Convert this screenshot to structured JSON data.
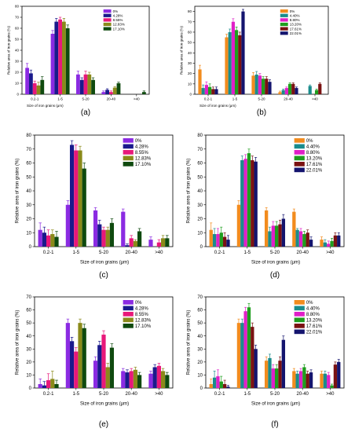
{
  "colors": {
    "set_a": [
      "#8B2BE2",
      "#1A1A8C",
      "#E8187A",
      "#8A8A1A",
      "#0F4A0F"
    ],
    "set_b": [
      "#F28C1E",
      "#1A8C8C",
      "#E020C8",
      "#1E9E1E",
      "#7A1212",
      "#14146E"
    ]
  },
  "chart_data": [
    {
      "id": "a",
      "type": "bar",
      "panel_label": "(a)",
      "xlabel": "Size of iron grains (μm)",
      "ylabel": "Relative area of iron grains (%)",
      "ylim": [
        0,
        80
      ],
      "yticks": [
        0,
        10,
        20,
        30,
        40,
        50,
        60,
        70,
        80
      ],
      "categories": [
        "0.2-1",
        "1-5",
        "5-20",
        "20-40",
        ">40"
      ],
      "legend_position": "top-right",
      "palette": "set_a",
      "series": [
        {
          "name": "0%",
          "values": [
            24,
            55,
            18,
            2,
            0
          ],
          "errors": [
            4,
            3,
            3,
            1,
            0
          ]
        },
        {
          "name": "4.28%",
          "values": [
            19,
            66,
            13,
            4,
            0
          ],
          "errors": [
            3,
            3,
            2,
            1,
            0
          ]
        },
        {
          "name": "8.55%",
          "values": [
            10,
            68,
            18,
            2,
            0
          ],
          "errors": [
            2,
            2,
            3,
            1,
            0
          ]
        },
        {
          "name": "12.83%",
          "values": [
            8,
            66,
            18,
            6,
            0
          ],
          "errors": [
            3,
            3,
            2,
            1,
            0
          ]
        },
        {
          "name": "17.10%",
          "values": [
            13,
            60,
            13,
            10,
            2
          ],
          "errors": [
            3,
            3,
            2,
            1,
            1
          ]
        }
      ]
    },
    {
      "id": "b",
      "type": "bar",
      "panel_label": "(b)",
      "xlabel": "Size of iron grains (μm)",
      "ylabel": "Relative area of iron grains (%)",
      "ylim": [
        0,
        85
      ],
      "yticks": [
        0,
        10,
        20,
        30,
        40,
        50,
        60,
        70,
        80
      ],
      "categories": [
        "0.2-1",
        "1-5",
        "5-20",
        "20-40",
        ">40"
      ],
      "legend_position": "top-right",
      "palette": "set_b",
      "series": [
        {
          "name": "0%",
          "values": [
            24,
            55,
            18,
            2,
            0
          ],
          "errors": [
            4,
            3,
            3,
            1,
            0
          ]
        },
        {
          "name": "4.40%",
          "values": [
            6,
            60,
            19,
            4,
            8
          ],
          "errors": [
            3,
            3,
            3,
            1,
            1
          ]
        },
        {
          "name": "8.80%",
          "values": [
            9,
            70,
            18,
            6,
            0
          ],
          "errors": [
            3,
            3,
            2,
            1,
            0
          ]
        },
        {
          "name": "13.20%",
          "values": [
            7,
            62,
            15,
            10,
            4
          ],
          "errors": [
            3,
            3,
            2,
            1,
            1
          ]
        },
        {
          "name": "17.61%",
          "values": [
            5,
            57,
            15,
            10,
            10
          ],
          "errors": [
            2,
            3,
            2,
            1,
            1
          ]
        },
        {
          "name": "22.01%",
          "values": [
            5,
            80,
            12,
            6,
            0
          ],
          "errors": [
            2,
            2,
            2,
            1,
            0
          ]
        }
      ]
    },
    {
      "id": "c",
      "type": "bar",
      "panel_label": "(c)",
      "xlabel": "Size of iron grains (μm)",
      "ylabel": "Relative area of iron grains (%)",
      "ylim": [
        0,
        80
      ],
      "yticks": [
        0,
        10,
        20,
        30,
        40,
        50,
        60,
        70,
        80
      ],
      "categories": [
        "0.2-1",
        "1-5",
        "5-20",
        "20-40",
        ">40"
      ],
      "legend_position": "top-right",
      "palette": "set_a",
      "series": [
        {
          "name": "0%",
          "values": [
            12,
            30,
            26,
            25,
            5
          ],
          "errors": [
            5,
            3,
            2,
            2,
            2
          ]
        },
        {
          "name": "4.28%",
          "values": [
            10,
            73,
            16,
            1,
            0
          ],
          "errors": [
            4,
            3,
            3,
            1,
            0
          ]
        },
        {
          "name": "8.55%",
          "values": [
            8,
            69,
            12,
            6,
            3
          ],
          "errors": [
            4,
            4,
            2,
            2,
            2
          ]
        },
        {
          "name": "12.83%",
          "values": [
            9,
            69,
            12,
            4,
            6
          ],
          "errors": [
            3,
            3,
            2,
            1,
            2
          ]
        },
        {
          "name": "17.10%",
          "values": [
            7,
            56,
            17,
            11,
            6
          ],
          "errors": [
            4,
            4,
            3,
            2,
            2
          ]
        }
      ]
    },
    {
      "id": "d",
      "type": "bar",
      "panel_label": "(d)",
      "xlabel": "Size of iron grains (μm)",
      "ylabel": "Relative area of iron grains (%)",
      "ylim": [
        0,
        80
      ],
      "yticks": [
        0,
        10,
        20,
        30,
        40,
        50,
        60,
        70,
        80
      ],
      "categories": [
        "0.2-1",
        "1-5",
        "5-20",
        "20-40",
        ">40"
      ],
      "legend_position": "top-right",
      "palette": "set_b",
      "series": [
        {
          "name": "0%",
          "values": [
            12,
            30,
            26,
            25,
            5
          ],
          "errors": [
            5,
            3,
            2,
            2,
            2
          ]
        },
        {
          "name": "4.40%",
          "values": [
            9,
            62,
            11,
            12,
            3
          ],
          "errors": [
            4,
            3,
            3,
            1,
            2
          ]
        },
        {
          "name": "8.80%",
          "values": [
            9,
            63,
            15,
            11,
            2
          ],
          "errors": [
            4,
            3,
            3,
            2,
            2
          ]
        },
        {
          "name": "13.20%",
          "values": [
            10,
            67,
            15,
            9,
            4
          ],
          "errors": [
            4,
            3,
            3,
            2,
            2
          ]
        },
        {
          "name": "17.61%",
          "values": [
            7,
            62,
            16,
            10,
            8
          ],
          "errors": [
            3,
            3,
            3,
            2,
            2
          ]
        },
        {
          "name": "22.01%",
          "values": [
            5,
            61,
            20,
            5,
            8
          ],
          "errors": [
            3,
            3,
            3,
            2,
            2
          ]
        }
      ]
    },
    {
      "id": "e",
      "type": "bar",
      "panel_label": "(e)",
      "xlabel": "Size of iron grains (μm)",
      "ylabel": "Relative area of iron grains (%)",
      "ylim": [
        0,
        70
      ],
      "yticks": [
        0,
        10,
        20,
        30,
        40,
        50,
        60,
        70
      ],
      "categories": [
        "0.2-1",
        "1-5",
        "5-20",
        "20-40",
        ">40"
      ],
      "legend_position": "top-right",
      "palette": "set_a",
      "series": [
        {
          "name": "0%",
          "values": [
            3,
            50,
            21,
            13,
            11
          ],
          "errors": [
            4,
            3,
            3,
            2,
            2
          ]
        },
        {
          "name": "4.28%",
          "values": [
            2,
            36,
            33,
            12,
            16
          ],
          "errors": [
            3,
            3,
            3,
            2,
            2
          ]
        },
        {
          "name": "8.55%",
          "values": [
            6,
            28,
            41,
            13,
            17
          ],
          "errors": [
            5,
            3,
            3,
            2,
            2
          ]
        },
        {
          "name": "12.83%",
          "values": [
            7,
            50,
            16,
            14,
            13
          ],
          "errors": [
            6,
            3,
            3,
            2,
            2
          ]
        },
        {
          "name": "17.10%",
          "values": [
            3,
            46,
            31,
            10,
            10
          ],
          "errors": [
            3,
            3,
            3,
            2,
            2
          ]
        }
      ]
    },
    {
      "id": "f",
      "type": "bar",
      "panel_label": "(f)",
      "xlabel": "Size of iron grains (μm)",
      "ylabel": "Relative area of iron grains (%)",
      "ylim": [
        0,
        70
      ],
      "yticks": [
        0,
        10,
        20,
        30,
        40,
        50,
        60,
        70
      ],
      "categories": [
        "0.2-1",
        "1-5",
        "5-20",
        "20-40",
        ">40"
      ],
      "legend_position": "top-right",
      "palette": "set_b",
      "series": [
        {
          "name": "0%",
          "values": [
            3,
            50,
            21,
            13,
            11
          ],
          "errors": [
            4,
            3,
            3,
            2,
            2
          ]
        },
        {
          "name": "4.40%",
          "values": [
            8,
            50,
            23,
            11,
            11
          ],
          "errors": [
            5,
            3,
            3,
            2,
            2
          ]
        },
        {
          "name": "8.80%",
          "values": [
            9,
            59,
            15,
            13,
            10
          ],
          "errors": [
            5,
            3,
            3,
            2,
            2
          ]
        },
        {
          "name": "13.20%",
          "values": [
            5,
            62,
            15,
            16,
            2
          ],
          "errors": [
            4,
            3,
            3,
            2,
            1
          ]
        },
        {
          "name": "17.61%",
          "values": [
            3,
            47,
            21,
            11,
            18
          ],
          "errors": [
            3,
            3,
            3,
            2,
            2
          ]
        },
        {
          "name": "22.01%",
          "values": [
            1,
            30,
            37,
            12,
            20
          ],
          "errors": [
            1,
            3,
            3,
            2,
            2
          ]
        }
      ]
    }
  ]
}
